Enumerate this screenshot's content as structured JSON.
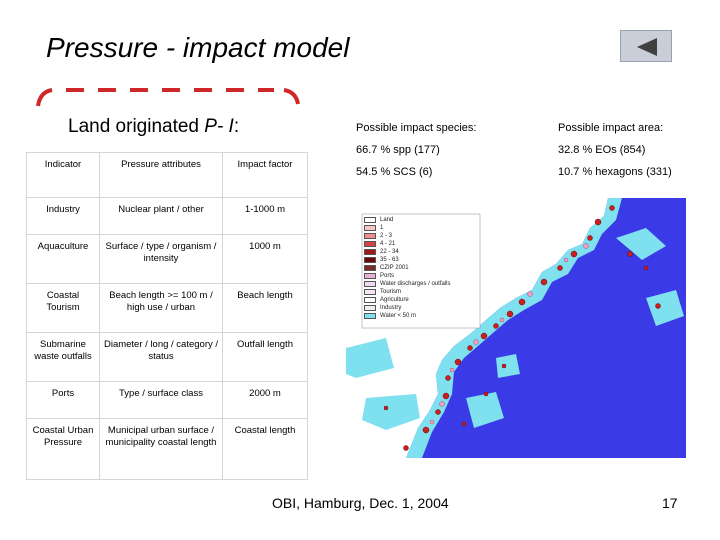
{
  "slide": {
    "title": "Pressure - impact model",
    "subtitle_prefix": "Land originated",
    "subtitle_italic": "P- I",
    "subtitle_suffix": ":",
    "footer": "OBI, Hamburg, Dec. 1, 2004",
    "page_number": "17"
  },
  "table": {
    "headers": [
      "Indicator",
      "Pressure attributes",
      "Impact factor"
    ],
    "rows": [
      [
        "Industry",
        "Nuclear plant / other",
        "1-1000 m"
      ],
      [
        "Aquaculture",
        "Surface / type / organism / intensity",
        "1000 m"
      ],
      [
        "Coastal Tourism",
        "Beach length >= 100 m / high use / urban",
        "Beach length"
      ],
      [
        "Submarine waste outfalls",
        "Diameter / long / category / status",
        "Outfall length"
      ],
      [
        "Ports",
        "Type / surface class",
        "2000 m"
      ],
      [
        "Coastal Urban Pressure",
        "Municipal urban surface / municipality coastal length",
        "Coastal length"
      ]
    ]
  },
  "stats": {
    "species_label": "Possible impact species:",
    "area_label": "Possible impact area:",
    "species_1": "66.7 % spp (177)",
    "species_2": "54.5 % SCS (6)",
    "area_1": "32.8 % EOs (854)",
    "area_2": "10.7 % hexagons (331)"
  },
  "map_legend": {
    "items": [
      {
        "label": "Land",
        "color": "#ffffff"
      },
      {
        "label": "1",
        "color": "#f7c6c6"
      },
      {
        "label": "2 - 3",
        "color": "#ef8f8f"
      },
      {
        "label": "4 - 21",
        "color": "#d84040"
      },
      {
        "label": "22 - 34",
        "color": "#a01818"
      },
      {
        "label": "35 - 63",
        "color": "#6a0808"
      },
      {
        "label": "CZIP 2001",
        "color": "#7a2a2a"
      },
      {
        "label": "Ports",
        "color": "#e8b0d8"
      },
      {
        "label": "Water discharges / outfalls",
        "color": "#f0d8f0"
      },
      {
        "label": "Tourism",
        "color": "#f4e4f4"
      },
      {
        "label": "Agriculture",
        "color": "#ffffff"
      },
      {
        "label": "Industry",
        "color": "#f0f0f0"
      },
      {
        "label": "Water < 50 m",
        "color": "#7fe0f0"
      }
    ]
  },
  "colors": {
    "sea": "#3a3ae6",
    "shallow": "#7fe0f0",
    "land": "#ffffff",
    "accent_dash": "#d02828"
  }
}
